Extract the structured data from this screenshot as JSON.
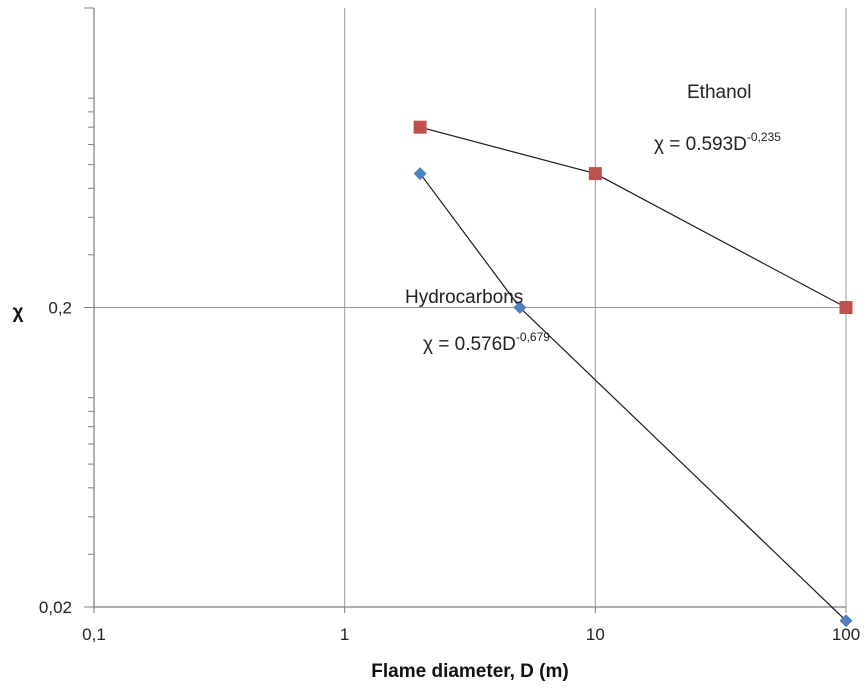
{
  "chart_data": {
    "type": "scatter",
    "xscale": "log",
    "yscale": "log",
    "xlim": [
      0.1,
      100
    ],
    "ylim": [
      0.02,
      2
    ],
    "xlabel": "Flame diameter, D (m)",
    "ylabel": "χ",
    "x_ticks": [
      "0,1",
      "1",
      "10",
      "100"
    ],
    "y_ticks": [
      "0,02",
      "0,2"
    ],
    "grid": true,
    "series": [
      {
        "color": "#c0504d",
        "marker": "square",
        "x": [
          2,
          10,
          100
        ],
        "y": [
          0.8,
          0.56,
          0.2
        ]
      },
      {
        "color": "#4f81bd",
        "marker": "diamond",
        "x": [
          2,
          5,
          100
        ],
        "y": [
          0.56,
          0.2,
          0.018
        ]
      }
    ],
    "annotations": {
      "ethanol_label": "Ethanol",
      "ethanol_eq_base": "χ = 0.593D",
      "ethanol_eq_exp": "-0,235",
      "hydro_label": "Hydrocarbons",
      "hydro_eq_base": "χ = 0.576D",
      "hydro_eq_exp": "-0,679"
    }
  }
}
